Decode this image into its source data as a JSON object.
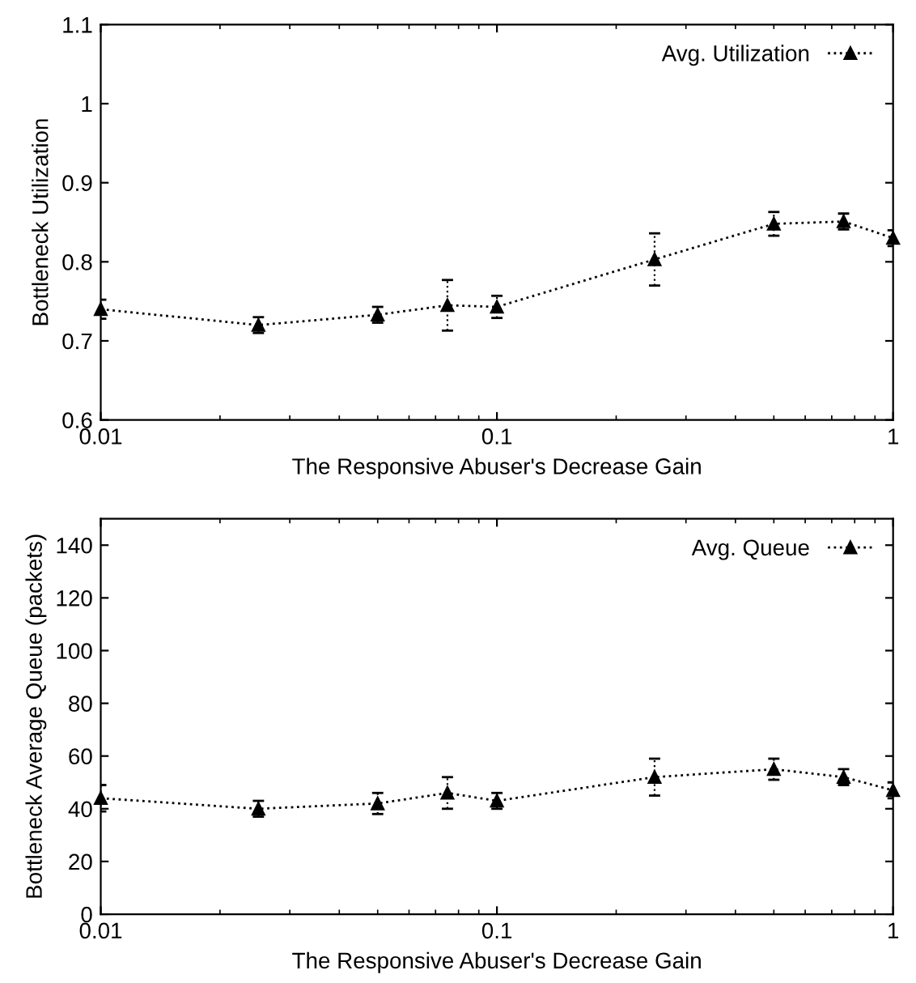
{
  "chart_data": [
    {
      "type": "line",
      "xlabel": "The Responsive Abuser's Decrease Gain",
      "ylabel": "Bottleneck Utilization",
      "log": "x",
      "x": [
        0.01,
        0.025,
        0.05,
        0.075,
        0.1,
        0.25,
        0.5,
        0.75,
        1
      ],
      "series": [
        {
          "name": "Avg. Utilization",
          "color": "#000000",
          "values": [
            0.74,
            0.72,
            0.733,
            0.745,
            0.743,
            0.803,
            0.848,
            0.851,
            0.83
          ],
          "errors": [
            0.012,
            0.01,
            0.01,
            0.032,
            0.014,
            0.033,
            0.015,
            0.01,
            0.01
          ]
        }
      ],
      "xlim": [
        0.01,
        1
      ],
      "xticks": [
        0.01,
        0.1,
        1
      ],
      "ylim": [
        0.6,
        1.1
      ],
      "yticks": [
        0.6,
        0.7,
        0.8,
        0.9,
        1,
        1.1
      ],
      "legend": "top right",
      "marker": "triangle",
      "line_style": "dotted",
      "grid": false
    },
    {
      "type": "line",
      "xlabel": "The Responsive Abuser's Decrease Gain",
      "ylabel": "Bottleneck Average Queue (packets)",
      "log": "x",
      "x": [
        0.01,
        0.025,
        0.05,
        0.075,
        0.1,
        0.25,
        0.5,
        0.75,
        1
      ],
      "series": [
        {
          "name": "Avg. Queue",
          "color": "#000000",
          "values": [
            44,
            40,
            42,
            46,
            43,
            52,
            55,
            52,
            47
          ],
          "errors": [
            5,
            3,
            4,
            6,
            3,
            7,
            4,
            3,
            3
          ]
        }
      ],
      "xlim": [
        0.01,
        1
      ],
      "xticks": [
        0.01,
        0.1,
        1
      ],
      "ylim": [
        0,
        150
      ],
      "yticks": [
        0,
        20,
        40,
        60,
        80,
        100,
        120,
        140
      ],
      "legend": "top right",
      "marker": "triangle",
      "line_style": "dotted",
      "grid": false
    }
  ]
}
